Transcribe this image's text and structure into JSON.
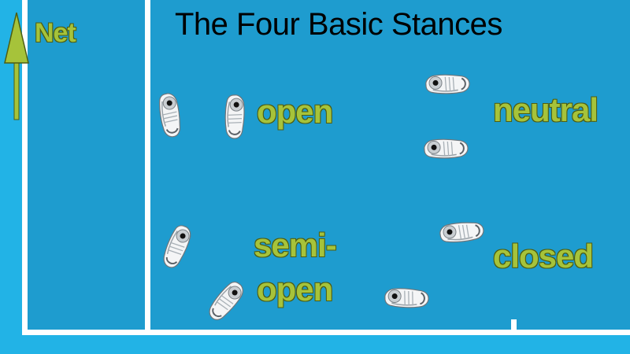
{
  "title": "The Four Basic Stances",
  "net_label": "Net",
  "stances": {
    "open": "open",
    "neutral": "neutral",
    "semi_open_line1": "semi-",
    "semi_open_line2": "open",
    "closed": "closed"
  },
  "colors": {
    "court": "#1e9ccf",
    "surround": "#22b3e6",
    "line": "#ffffff",
    "label_fill": "#a6c33a",
    "label_outline": "#4d5d12",
    "title": "#000000"
  },
  "icons": [
    "up-arrow-icon",
    "shoe-print-icon"
  ]
}
